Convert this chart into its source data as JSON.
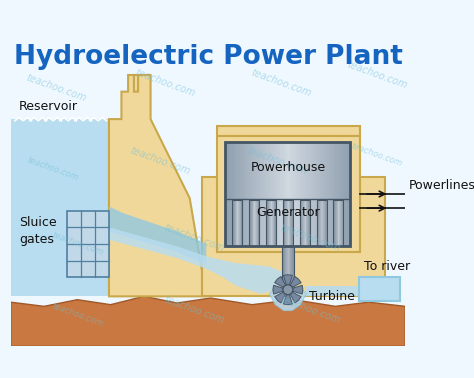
{
  "title": "Hydroelectric Power Plant",
  "title_color": "#1565c0",
  "title_fontsize": 19,
  "bg_color": "#f0f8ff",
  "labels": {
    "reservoir": "Reservoir",
    "sluice": "Sluice\ngates",
    "powerhouse": "Powerhouse",
    "generator": "Generator",
    "turbine": "Turbine",
    "powerlines": "Powerlines",
    "to_river": "To river"
  },
  "colors": {
    "dam_body": "#f0d89a",
    "dam_outline": "#c8a84b",
    "water_light": "#b8dcf0",
    "water_mid": "#90c8e0",
    "water_wave": "#ffffff",
    "ground_top": "#c87840",
    "ground_bot": "#a05828",
    "ph_metal_light": "#c8d8e8",
    "ph_metal_dark": "#788898",
    "ph_border": "#445566",
    "shaft_color": "#8898a8",
    "turbine_blade": "#7888a0",
    "sluice_bg": "#c0d8e8",
    "sluice_line": "#5080a0",
    "label_color": "#111111",
    "arrow_color": "#111111",
    "watermark_color": "#70c0d8"
  },
  "watermark": "teachoo.com"
}
